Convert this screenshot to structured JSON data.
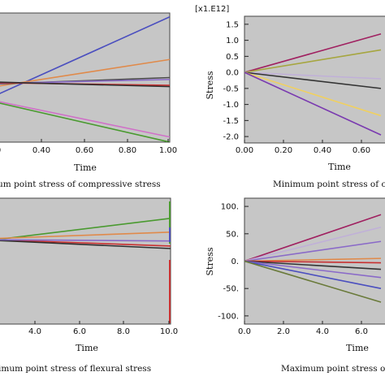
{
  "chart_data": [
    {
      "type": "line",
      "xlabel": "Time",
      "ylabel": "",
      "caption": "um point stress of compressive stress",
      "x": [
        0.2,
        1.0
      ],
      "xticks": [
        "0",
        "0.40",
        "0.60",
        "0.80",
        "1.00"
      ],
      "xlim": [
        0.2,
        1.0
      ],
      "ylim": [
        0,
        1
      ],
      "series": [
        {
          "color": "#4b4fbf",
          "values": [
            0.36,
            0.97
          ]
        },
        {
          "color": "#e08a4a",
          "values": [
            0.43,
            0.64
          ]
        },
        {
          "color": "#4a4a4a",
          "values": [
            0.45,
            0.5
          ]
        },
        {
          "color": "#8a6ac8",
          "values": [
            0.455,
            0.485
          ]
        },
        {
          "color": "#c83030",
          "values": [
            0.46,
            0.44
          ]
        },
        {
          "color": "#2f2f2f",
          "values": [
            0.465,
            0.43
          ]
        },
        {
          "color": "#d070c8",
          "values": [
            0.32,
            0.04
          ]
        },
        {
          "color": "#4a9a30",
          "values": [
            0.31,
            0.0
          ]
        }
      ]
    },
    {
      "type": "line",
      "xlabel": "Time",
      "ylabel": "Stress",
      "multiplier": "[x1.E12]",
      "caption": "Minimum point stress of comp",
      "x": [
        0.0,
        0.7
      ],
      "xticks": [
        "0.00",
        "0.20",
        "0.40",
        "0.60"
      ],
      "yticks": [
        "1.5",
        "1.0",
        "0.5",
        "0.0",
        "-0.5",
        "-1.0",
        "-1.5",
        "-2.0"
      ],
      "xlim": [
        0,
        0.75
      ],
      "ylim": [
        -2.2,
        1.75
      ],
      "series": [
        {
          "color": "#a02060",
          "values": [
            0.0,
            1.2
          ]
        },
        {
          "color": "#a6a640",
          "values": [
            0.0,
            0.7
          ]
        },
        {
          "color": "#c0b0d8",
          "values": [
            0.0,
            -0.2
          ]
        },
        {
          "color": "#333333",
          "values": [
            0.0,
            -0.5
          ]
        },
        {
          "color": "#f0d060",
          "values": [
            0.0,
            -1.35
          ]
        },
        {
          "color": "#7a3ab0",
          "values": [
            0.0,
            -1.95
          ]
        }
      ]
    },
    {
      "type": "line",
      "xlabel": "Time",
      "ylabel": "",
      "caption": "imum point stress of flexural stress",
      "x": [
        2.0,
        10.0
      ],
      "xticks": [
        "4.0",
        "6.0",
        "8.0",
        "10.0"
      ],
      "xlim": [
        2.0,
        10.0
      ],
      "ylim": [
        0,
        1
      ],
      "series": [
        {
          "color": "#4a9a30",
          "values": [
            0.67,
            0.84
          ]
        },
        {
          "color": "#e08a4a",
          "values": [
            0.68,
            0.73
          ]
        },
        {
          "color": "#c83030",
          "values": [
            0.67,
            0.62
          ]
        },
        {
          "color": "#2f2f2f",
          "values": [
            0.665,
            0.6
          ]
        },
        {
          "color": "#8a6ac8",
          "values": [
            0.67,
            0.66
          ]
        }
      ]
    },
    {
      "type": "line",
      "xlabel": "Time",
      "ylabel": "Stress",
      "caption": "Maximum point stress of fle",
      "x": [
        0.0,
        7.0
      ],
      "xticks": [
        "0.0",
        "2.0",
        "4.0",
        "6.0"
      ],
      "yticks": [
        "100.",
        "50.",
        "0.",
        "-50.",
        "-100."
      ],
      "xlim": [
        0,
        7.5
      ],
      "ylim": [
        -115,
        115
      ],
      "series": [
        {
          "color": "#a02060",
          "values": [
            0,
            85
          ]
        },
        {
          "color": "#c0b0d8",
          "values": [
            0,
            62
          ]
        },
        {
          "color": "#8a6ac8",
          "values": [
            0,
            36
          ]
        },
        {
          "color": "#e08a4a",
          "values": [
            0,
            5
          ]
        },
        {
          "color": "#c83030",
          "values": [
            0,
            -3
          ]
        },
        {
          "color": "#333333",
          "values": [
            0,
            -15
          ]
        },
        {
          "color": "#8a6ac8",
          "values": [
            0,
            -30
          ]
        },
        {
          "color": "#4b4fbf",
          "values": [
            0,
            -50
          ]
        },
        {
          "color": "#6a7a3a",
          "values": [
            0,
            -75
          ]
        }
      ]
    }
  ]
}
